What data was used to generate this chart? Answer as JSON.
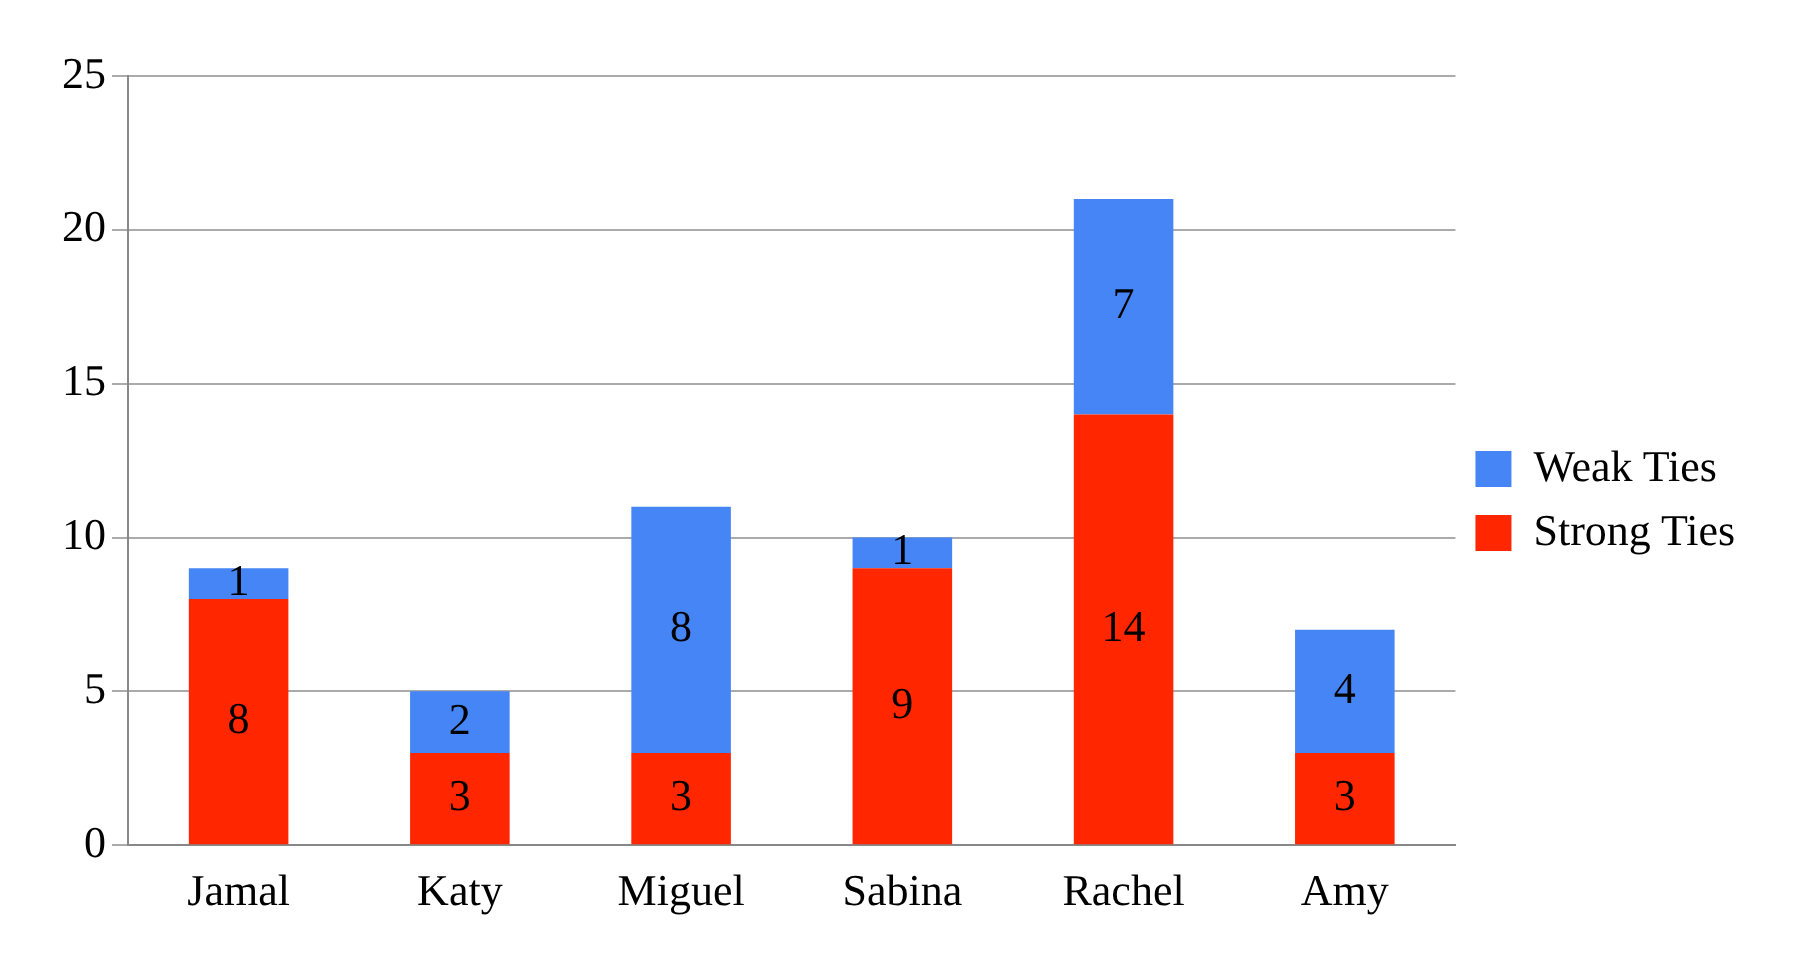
{
  "chart_data": {
    "type": "bar",
    "stacked": true,
    "categories": [
      "Jamal",
      "Katy",
      "Miguel",
      "Sabina",
      "Rachel",
      "Amy"
    ],
    "series": [
      {
        "name": "Strong Ties",
        "color": "#ff2600",
        "values": [
          8,
          3,
          3,
          9,
          14,
          3
        ]
      },
      {
        "name": "Weak Ties",
        "color": "#4585f5",
        "values": [
          1,
          2,
          8,
          1,
          7,
          4
        ]
      }
    ],
    "ylim": [
      0,
      25
    ],
    "yticks": [
      0,
      5,
      10,
      15,
      20,
      25
    ],
    "grid": "y",
    "legend": "right",
    "data_labels": true
  }
}
